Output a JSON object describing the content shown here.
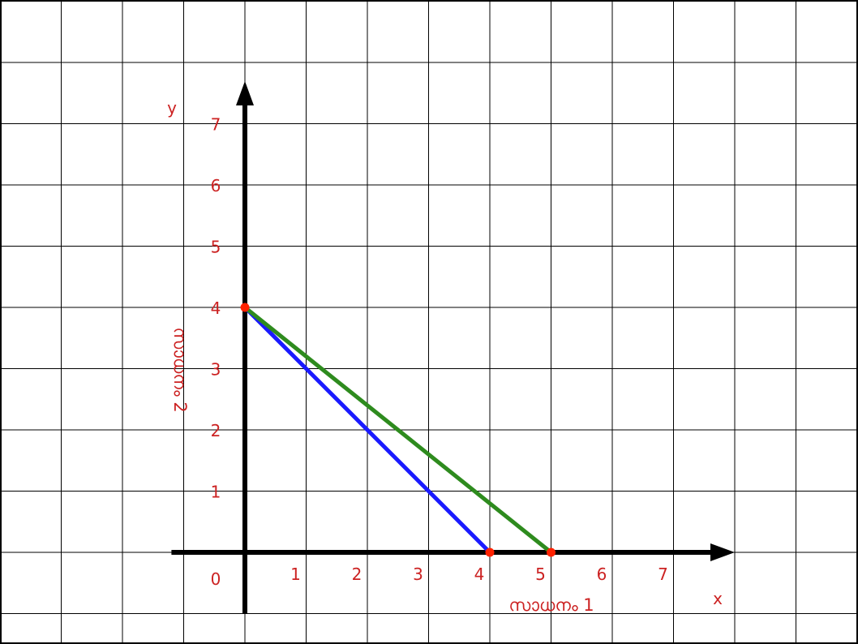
{
  "chart_data": {
    "type": "line",
    "xlabel": "സാധനം 1",
    "ylabel": "സാധനം 2",
    "x_axis_letter": "x",
    "y_axis_letter": "y",
    "origin_label": "0",
    "x_ticks": [
      "1",
      "2",
      "3",
      "4",
      "5",
      "6",
      "7"
    ],
    "y_ticks": [
      "1",
      "2",
      "3",
      "4",
      "5",
      "6",
      "7"
    ],
    "xlim": [
      -1.2,
      8
    ],
    "ylim": [
      -1,
      7.5
    ],
    "grid": true,
    "series": [
      {
        "color": "#1a1aff",
        "points": [
          [
            0,
            4
          ],
          [
            4,
            0
          ]
        ]
      },
      {
        "color": "#2e8b1e",
        "points": [
          [
            0,
            4
          ],
          [
            5,
            0
          ]
        ]
      }
    ],
    "points": [
      {
        "x": 0,
        "y": 4
      },
      {
        "x": 4,
        "y": 0
      },
      {
        "x": 5,
        "y": 0
      }
    ],
    "colors": {
      "label": "#cc2222",
      "axis": "#000000",
      "grid": "#000000",
      "point": "#ff2200"
    }
  }
}
